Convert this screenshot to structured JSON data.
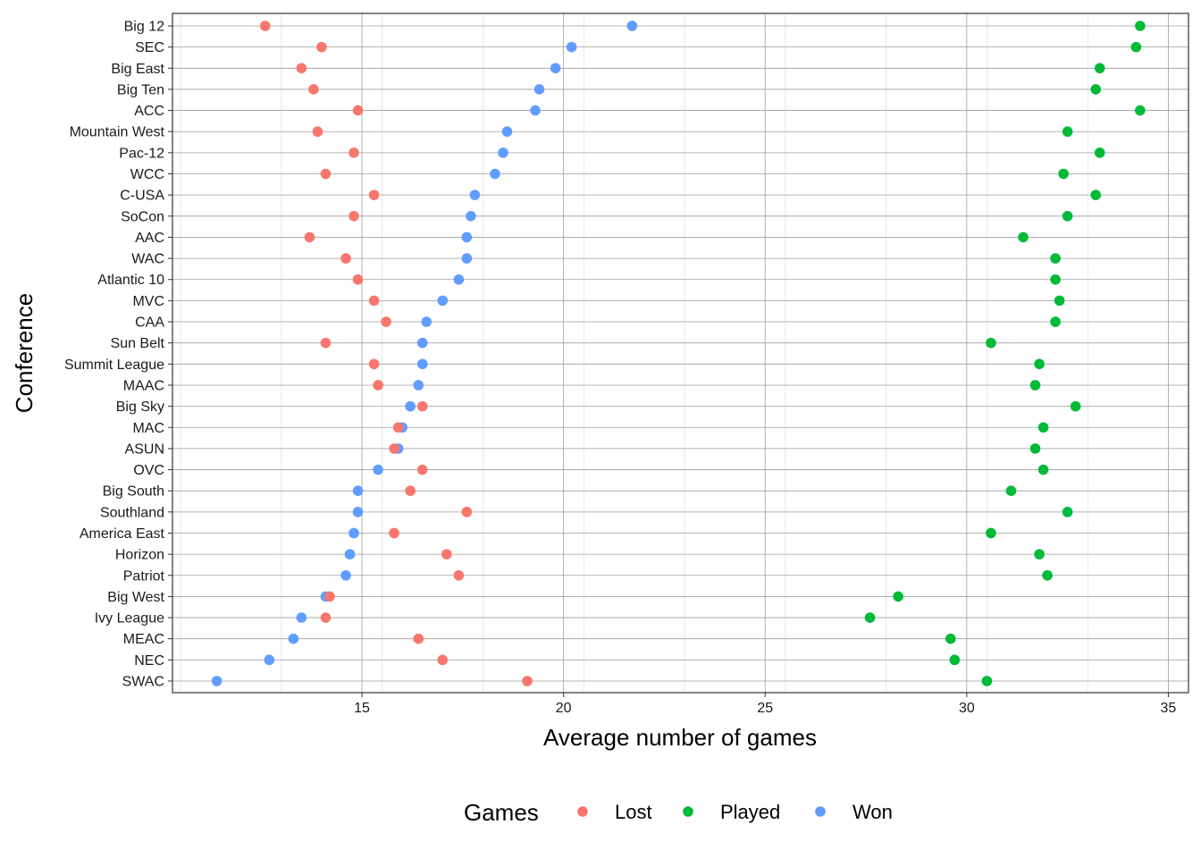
{
  "chart_data": {
    "type": "scatter",
    "xlabel": "Average number of games",
    "ylabel": "Conference",
    "xlim": [
      10.3,
      35.5
    ],
    "x_ticks": [
      15,
      20,
      25,
      30,
      35
    ],
    "grid": true,
    "legend": {
      "title": "Games",
      "position": "bottom",
      "entries": [
        "Lost",
        "Played",
        "Won"
      ]
    },
    "categories": [
      "Big 12",
      "SEC",
      "Big East",
      "Big Ten",
      "ACC",
      "Mountain West",
      "Pac-12",
      "WCC",
      "C-USA",
      "SoCon",
      "AAC",
      "WAC",
      "Atlantic 10",
      "MVC",
      "CAA",
      "Sun Belt",
      "Summit League",
      "MAAC",
      "Big Sky",
      "MAC",
      "ASUN",
      "OVC",
      "Big South",
      "Southland",
      "America East",
      "Horizon",
      "Patriot",
      "Big West",
      "Ivy League",
      "MEAC",
      "NEC",
      "SWAC"
    ],
    "series": [
      {
        "name": "Lost",
        "color": "#F8766D",
        "values": [
          12.6,
          14.0,
          13.5,
          13.8,
          14.9,
          13.9,
          14.8,
          14.1,
          15.3,
          14.8,
          13.7,
          14.6,
          14.9,
          15.3,
          15.6,
          14.1,
          15.3,
          15.4,
          16.5,
          15.9,
          15.8,
          16.5,
          16.2,
          17.6,
          15.8,
          17.1,
          17.4,
          14.2,
          14.1,
          16.4,
          17.0,
          19.1
        ]
      },
      {
        "name": "Played",
        "color": "#00BA38",
        "values": [
          34.3,
          34.2,
          33.3,
          33.2,
          34.3,
          32.5,
          33.3,
          32.4,
          33.2,
          32.5,
          31.4,
          32.2,
          32.2,
          32.3,
          32.2,
          30.6,
          31.8,
          31.7,
          32.7,
          31.9,
          31.7,
          31.9,
          31.1,
          32.5,
          30.6,
          31.8,
          32.0,
          28.3,
          27.6,
          29.6,
          29.7,
          30.5
        ]
      },
      {
        "name": "Won",
        "color": "#619CFF",
        "values": [
          21.7,
          20.2,
          19.8,
          19.4,
          19.3,
          18.6,
          18.5,
          18.3,
          17.8,
          17.7,
          17.6,
          17.6,
          17.4,
          17.0,
          16.6,
          16.5,
          16.5,
          16.4,
          16.2,
          16.0,
          15.9,
          15.4,
          14.9,
          14.9,
          14.8,
          14.7,
          14.6,
          14.1,
          13.5,
          13.3,
          12.7,
          11.4
        ]
      }
    ]
  }
}
